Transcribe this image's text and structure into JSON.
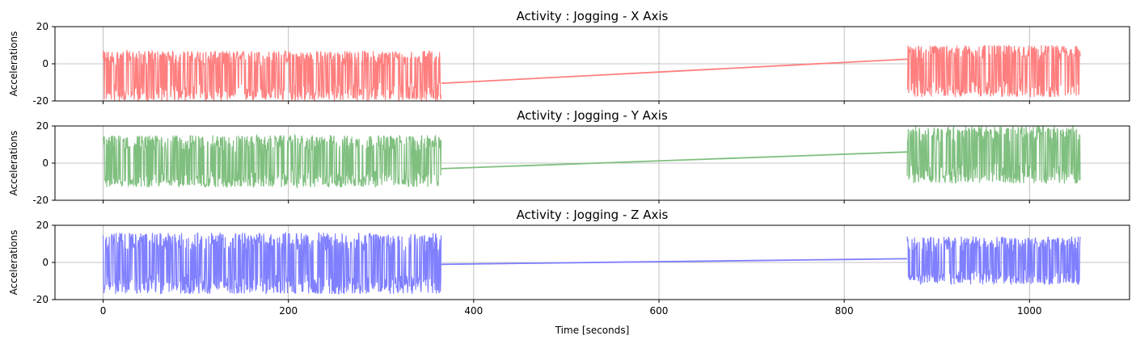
{
  "chart_data": [
    {
      "type": "line",
      "title": "Activity : Jogging - X Axis",
      "ylabel": "Accelerations",
      "xlabel": "",
      "xlim": [
        -52,
        1108
      ],
      "ylim": [
        -20,
        20
      ],
      "yticks": [
        -20,
        0,
        20
      ],
      "xticks": [
        0,
        200,
        400,
        600,
        800,
        1000
      ],
      "xtick_labels": [],
      "grid": true,
      "color": "#ff7f7f",
      "segments": [
        {
          "x_range": [
            0,
            365
          ],
          "mean": -5,
          "min": -20,
          "max": 7
        },
        {
          "x_range": [
            868,
            1055
          ],
          "mean": -2,
          "min": -18,
          "max": 10
        }
      ],
      "connector": {
        "x": [
          365,
          868
        ],
        "y": [
          -10.5,
          2.5
        ]
      }
    },
    {
      "type": "line",
      "title": "Activity : Jogging - Y Axis",
      "ylabel": "Accelerations",
      "xlabel": "",
      "xlim": [
        -52,
        1108
      ],
      "ylim": [
        -20,
        20
      ],
      "yticks": [
        -20,
        0,
        20
      ],
      "xticks": [
        0,
        200,
        400,
        600,
        800,
        1000
      ],
      "xtick_labels": [],
      "grid": true,
      "color": "#7fbf7f",
      "segments": [
        {
          "x_range": [
            0,
            365
          ],
          "mean": 1,
          "min": -13,
          "max": 15
        },
        {
          "x_range": [
            868,
            1055
          ],
          "mean": 6,
          "min": -11,
          "max": 20
        }
      ],
      "connector": {
        "x": [
          365,
          868
        ],
        "y": [
          -3,
          6
        ]
      }
    },
    {
      "type": "line",
      "title": "Activity : Jogging - Z Axis",
      "ylabel": "Accelerations",
      "xlabel": "Time [seconds]",
      "xlim": [
        -52,
        1108
      ],
      "ylim": [
        -20,
        20
      ],
      "yticks": [
        -20,
        0,
        20
      ],
      "xticks": [
        0,
        200,
        400,
        600,
        800,
        1000
      ],
      "xtick_labels": [
        "0",
        "200",
        "400",
        "600",
        "800",
        "1000"
      ],
      "grid": true,
      "color": "#7f7fff",
      "segments": [
        {
          "x_range": [
            0,
            365
          ],
          "mean": 0,
          "min": -17,
          "max": 16
        },
        {
          "x_range": [
            868,
            1055
          ],
          "mean": 1,
          "min": -12,
          "max": 14
        }
      ],
      "connector": {
        "x": [
          365,
          868
        ],
        "y": [
          -1,
          2
        ]
      }
    }
  ]
}
